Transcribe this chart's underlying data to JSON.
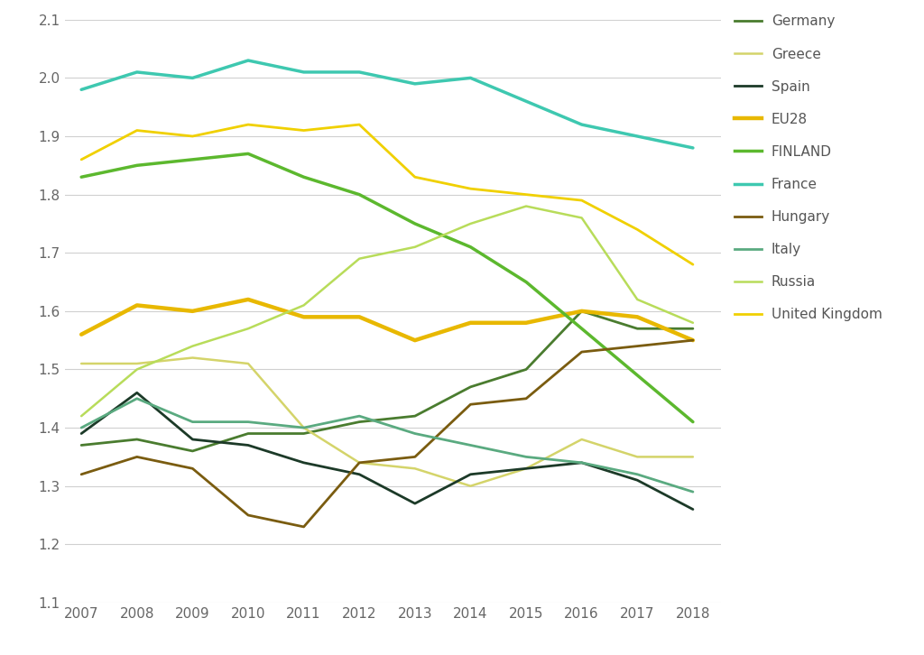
{
  "years": [
    2007,
    2008,
    2009,
    2010,
    2011,
    2012,
    2013,
    2014,
    2015,
    2016,
    2017,
    2018
  ],
  "series": {
    "Germany": {
      "color": "#4a7c2f",
      "linewidth": 2.0,
      "values": [
        1.37,
        1.38,
        1.36,
        1.39,
        1.39,
        1.41,
        1.42,
        1.47,
        1.5,
        1.6,
        1.57,
        1.57
      ]
    },
    "Greece": {
      "color": "#d4d46a",
      "linewidth": 1.8,
      "values": [
        1.51,
        1.51,
        1.52,
        1.51,
        1.4,
        1.34,
        1.33,
        1.3,
        1.33,
        1.38,
        1.35,
        1.35
      ]
    },
    "Spain": {
      "color": "#1c3a28",
      "linewidth": 2.0,
      "values": [
        1.39,
        1.46,
        1.38,
        1.37,
        1.34,
        1.32,
        1.27,
        1.32,
        1.33,
        1.34,
        1.31,
        1.26
      ]
    },
    "EU28": {
      "color": "#e8b800",
      "linewidth": 3.2,
      "values": [
        1.56,
        1.61,
        1.6,
        1.62,
        1.59,
        1.59,
        1.55,
        1.58,
        1.58,
        1.6,
        1.59,
        1.55
      ]
    },
    "FINLAND": {
      "color": "#5cb82e",
      "linewidth": 2.5,
      "values": [
        1.83,
        1.85,
        1.86,
        1.87,
        1.83,
        1.8,
        1.75,
        1.71,
        1.65,
        1.57,
        1.49,
        1.41
      ]
    },
    "France": {
      "color": "#3ec8b0",
      "linewidth": 2.5,
      "values": [
        1.98,
        2.01,
        2.0,
        2.03,
        2.01,
        2.01,
        1.99,
        2.0,
        1.96,
        1.92,
        1.9,
        1.88
      ]
    },
    "Hungary": {
      "color": "#7a5c10",
      "linewidth": 2.0,
      "values": [
        1.32,
        1.35,
        1.33,
        1.25,
        1.23,
        1.34,
        1.35,
        1.44,
        1.45,
        1.53,
        1.54,
        1.55
      ]
    },
    "Italy": {
      "color": "#5aaa80",
      "linewidth": 2.0,
      "values": [
        1.4,
        1.45,
        1.41,
        1.41,
        1.4,
        1.42,
        1.39,
        1.37,
        1.35,
        1.34,
        1.32,
        1.29
      ]
    },
    "Russia": {
      "color": "#b8dc5a",
      "linewidth": 1.8,
      "values": [
        1.42,
        1.5,
        1.54,
        1.57,
        1.61,
        1.69,
        1.71,
        1.75,
        1.78,
        1.76,
        1.62,
        1.58
      ]
    },
    "United Kingdom": {
      "color": "#f0d000",
      "linewidth": 2.0,
      "values": [
        1.86,
        1.91,
        1.9,
        1.92,
        1.91,
        1.92,
        1.83,
        1.81,
        1.8,
        1.79,
        1.74,
        1.68
      ]
    }
  },
  "ylim": [
    1.1,
    2.1
  ],
  "yticks": [
    1.1,
    1.2,
    1.3,
    1.4,
    1.5,
    1.6,
    1.7,
    1.8,
    1.9,
    2.0,
    2.1
  ],
  "background_color": "#ffffff",
  "grid_color": "#d0d0d0",
  "legend_order": [
    "Germany",
    "Greece",
    "Spain",
    "EU28",
    "FINLAND",
    "France",
    "Hungary",
    "Italy",
    "Russia",
    "United Kingdom"
  ],
  "figsize": [
    10.24,
    7.26
  ],
  "dpi": 100
}
